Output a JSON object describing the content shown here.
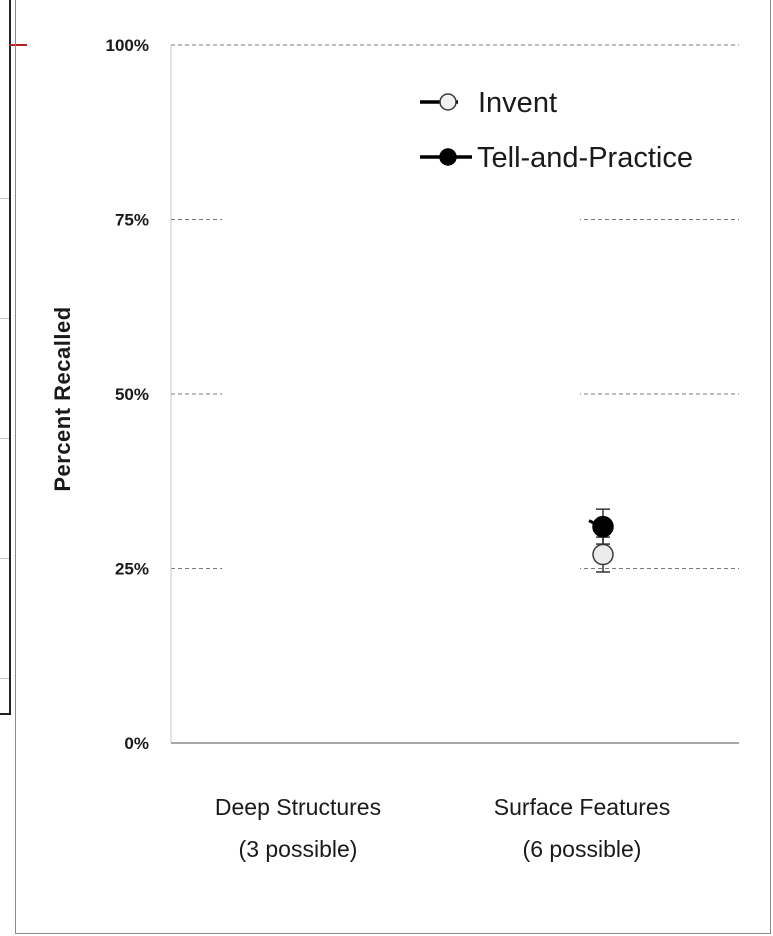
{
  "chart_data": {
    "type": "scatter",
    "title": "",
    "xlabel": "",
    "ylabel": "Percent Recalled",
    "categories": [
      [
        "Deep Structures",
        "(3 possible)"
      ],
      [
        "Surface Features",
        "(6 possible)"
      ]
    ],
    "ylim": [
      0,
      100
    ],
    "yticks": [
      0,
      25,
      50,
      75,
      100
    ],
    "ytick_labels": [
      "0%",
      "25%",
      "50%",
      "75%",
      "100%"
    ],
    "grid": "horizontal dashed",
    "legend_position": "top-right",
    "series": [
      {
        "name": "Invent",
        "marker": "open-circle",
        "values": [
          null,
          27
        ],
        "error_low": [
          null,
          2.5
        ],
        "error_high": [
          null,
          2.5
        ],
        "color": "#ececec"
      },
      {
        "name": "Tell-and-Practice",
        "marker": "filled-circle",
        "values": [
          null,
          31
        ],
        "error_low": [
          null,
          2.5
        ],
        "error_high": [
          null,
          2.5
        ],
        "color": "#000000"
      }
    ]
  }
}
